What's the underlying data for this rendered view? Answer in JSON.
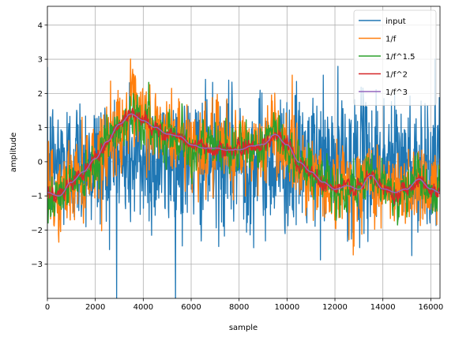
{
  "chart_data": {
    "type": "line",
    "title": "",
    "xlabel": "sample",
    "ylabel": "amplitude",
    "xlim": [
      0,
      16384
    ],
    "ylim": [
      -4,
      4.55
    ],
    "xticks": [
      0,
      2000,
      4000,
      6000,
      8000,
      10000,
      12000,
      14000,
      16000
    ],
    "yticks": [
      -3,
      -2,
      -1,
      0,
      1,
      2,
      3,
      4
    ],
    "grid": true,
    "legend_position": "top-right",
    "series": [
      {
        "name": "input",
        "color": "#1f77b4",
        "noise_amplitude": 1.0,
        "trend_scale": 0.0
      },
      {
        "name": "1/f",
        "color": "#ff7f0e",
        "noise_amplitude": 0.75,
        "trend_scale": 1.0
      },
      {
        "name": "1/f^1.5",
        "color": "#2ca02c",
        "noise_amplitude": 0.55,
        "trend_scale": 1.0
      },
      {
        "name": "1/f^2",
        "color": "#d62728",
        "noise_amplitude": 0.22,
        "trend_scale": 1.0
      },
      {
        "name": "1/f^3",
        "color": "#9467bd",
        "noise_amplitude": 0.03,
        "trend_scale": 1.0
      }
    ],
    "underlying_trend": {
      "x": [
        0,
        500,
        1000,
        1500,
        2000,
        2500,
        3000,
        3500,
        4000,
        4500,
        5000,
        5500,
        6000,
        6500,
        7000,
        7500,
        8000,
        8500,
        9000,
        9500,
        10000,
        10500,
        11000,
        11500,
        12000,
        12500,
        13000,
        13500,
        14000,
        14500,
        15000,
        15500,
        16000,
        16384
      ],
      "y": [
        -0.9,
        -1.0,
        -0.6,
        -0.3,
        0.1,
        0.6,
        1.1,
        1.4,
        1.2,
        1.0,
        0.8,
        0.75,
        0.5,
        0.4,
        0.4,
        0.35,
        0.35,
        0.45,
        0.5,
        0.8,
        0.5,
        0.0,
        -0.3,
        -0.6,
        -0.8,
        -0.7,
        -0.8,
        -0.4,
        -0.8,
        -0.9,
        -0.8,
        -0.5,
        -0.8,
        -0.9
      ]
    }
  }
}
